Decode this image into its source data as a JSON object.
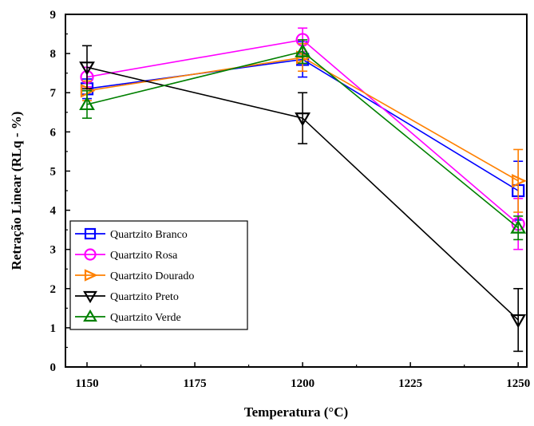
{
  "chart_data": {
    "type": "line",
    "title": "",
    "xlabel": "Temperatura (°C)",
    "ylabel": "Retração Linear (RLq - %)",
    "xlim": [
      1145,
      1252
    ],
    "ylim": [
      0,
      9
    ],
    "x_ticks": [
      1150,
      1175,
      1200,
      1225,
      1250
    ],
    "y_ticks": [
      0,
      1,
      2,
      3,
      4,
      5,
      6,
      7,
      8,
      9
    ],
    "legend_position": "bottom-left",
    "grid": false,
    "series": [
      {
        "name": "Quartzito Branco",
        "color": "#0000ff",
        "marker": "square",
        "x": [
          1150,
          1200,
          1250
        ],
        "y": [
          7.1,
          7.85,
          4.5
        ],
        "err": [
          0.25,
          0.45,
          0.75
        ]
      },
      {
        "name": "Quartzito Rosa",
        "color": "#ff00ff",
        "marker": "circle",
        "x": [
          1150,
          1200,
          1250
        ],
        "y": [
          7.4,
          8.35,
          3.65
        ],
        "err": [
          0.25,
          0.3,
          0.65
        ]
      },
      {
        "name": "Quartzito Dourado",
        "color": "#ff8000",
        "marker": "triangle-right",
        "x": [
          1150,
          1200,
          1250
        ],
        "y": [
          7.05,
          7.9,
          4.75
        ],
        "err": [
          0.25,
          0.35,
          0.8
        ]
      },
      {
        "name": "Quartzito Preto",
        "color": "#000000",
        "marker": "triangle-down",
        "x": [
          1150,
          1200,
          1250
        ],
        "y": [
          7.65,
          6.35,
          1.2
        ],
        "err": [
          0.55,
          0.65,
          0.8
        ]
      },
      {
        "name": "Quartzito Verde",
        "color": "#008000",
        "marker": "triangle-up",
        "x": [
          1150,
          1200,
          1250
        ],
        "y": [
          6.7,
          8.05,
          3.55
        ],
        "err": [
          0.35,
          0.3,
          0.3
        ]
      }
    ]
  }
}
